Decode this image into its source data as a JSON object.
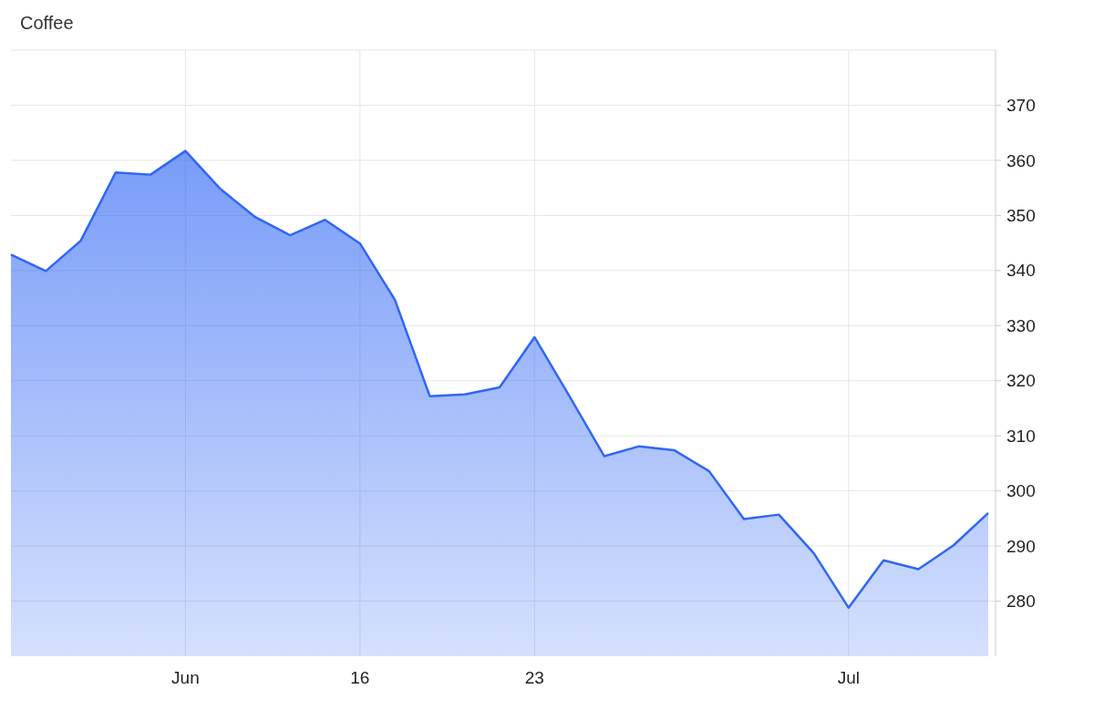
{
  "chart_data": {
    "type": "area",
    "title": "Coffee",
    "categories": [
      null,
      null,
      null,
      null,
      null,
      "Jun",
      null,
      null,
      null,
      null,
      "16",
      null,
      null,
      null,
      null,
      "23",
      null,
      null,
      null,
      null,
      null,
      null,
      null,
      null,
      "Jul",
      null,
      null,
      null,
      null
    ],
    "series": [
      {
        "color": "#2f66f5",
        "values": [
          342.9,
          339.9,
          345.4,
          357.8,
          357.4,
          361.7,
          354.8,
          349.7,
          346.4,
          349.2,
          344.9,
          334.7,
          317.2,
          317.5,
          318.8,
          327.9,
          317.2,
          306.3,
          308.1,
          307.4,
          303.6,
          294.9,
          295.7,
          288.7,
          278.8,
          287.4,
          285.8,
          290.1,
          296.0
        ]
      }
    ],
    "ylim": [
      270,
      380
    ],
    "yticks": [
      280,
      290,
      300,
      310,
      320,
      330,
      340,
      350,
      360,
      370
    ],
    "grid": true
  }
}
